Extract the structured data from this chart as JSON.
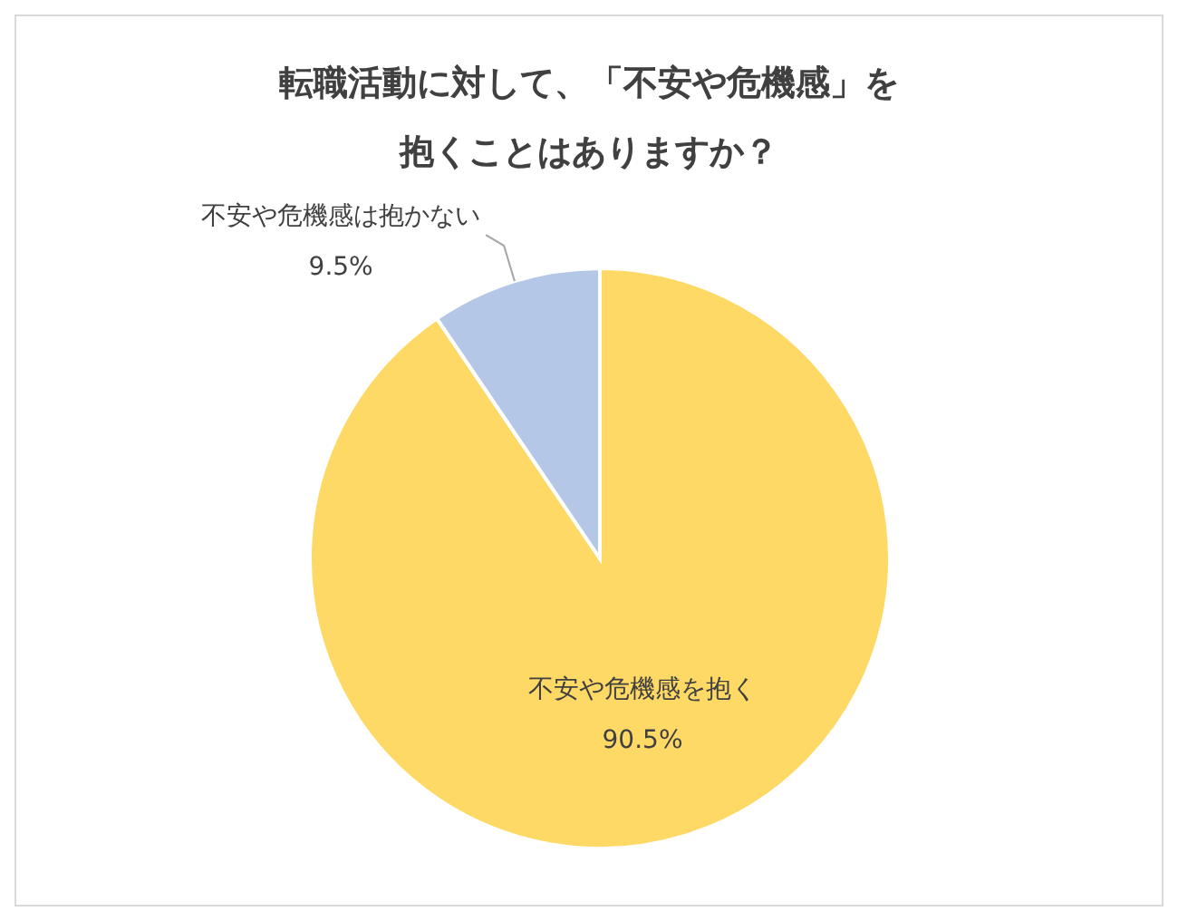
{
  "chart_data": {
    "type": "pie",
    "title": "転職活動に対して、「不安や危機感」を抱くことはありますか？",
    "categories": [
      "不安や危機感を抱く",
      "不安や危機感は抱かない"
    ],
    "values": [
      90.5,
      9.5
    ],
    "colors": [
      "#ffd966",
      "#b4c7e7"
    ],
    "value_labels": [
      "90.5%",
      "9.5%"
    ],
    "legend": false
  }
}
